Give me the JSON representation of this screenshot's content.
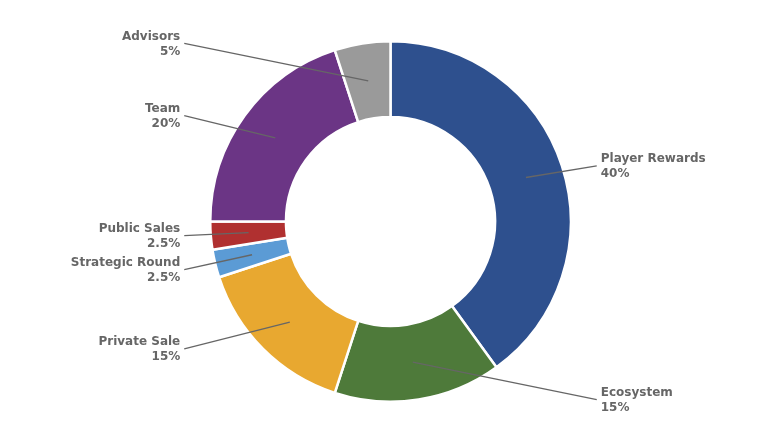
{
  "chart_data": {
    "type": "doughnut",
    "categories": [
      "Player Rewards",
      "Ecosystem",
      "Private Sale",
      "Strategic Round",
      "Public Sales",
      "Team",
      "Advisors"
    ],
    "values": [
      40,
      15,
      15,
      2.5,
      2.5,
      20,
      5
    ],
    "value_labels": [
      "40%",
      "15%",
      "15%",
      "2.5%",
      "2.5%",
      "20%",
      "5%"
    ],
    "colors": [
      "#2e508e",
      "#4e7a3a",
      "#e8a830",
      "#5b9bd5",
      "#b03030",
      "#6b3585",
      "#9a9a9a"
    ],
    "data_labels": true
  }
}
